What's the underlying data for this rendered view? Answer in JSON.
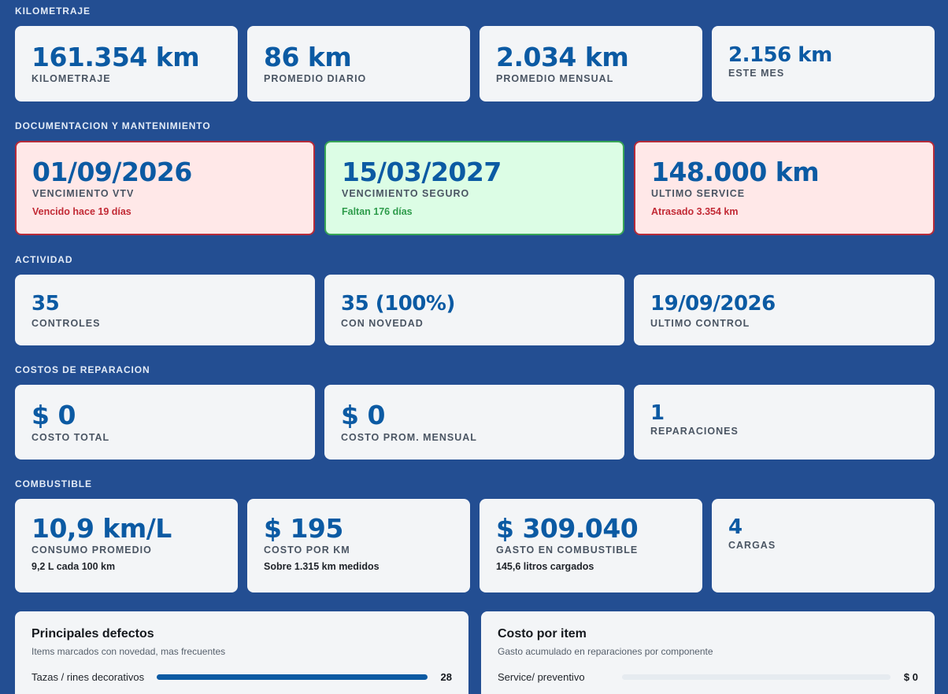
{
  "sections": {
    "kilometraje": "KILOMETRAJE",
    "documentacion": "DOCUMENTACION Y MANTENIMIENTO",
    "actividad": "ACTIVIDAD",
    "costos": "COSTOS DE REPARACION",
    "combustible": "COMBUSTIBLE"
  },
  "kilometraje": [
    {
      "value": "161.354 km",
      "label": "KILOMETRAJE"
    },
    {
      "value": "86 km",
      "label": "PROMEDIO DIARIO"
    },
    {
      "value": "2.034 km",
      "label": "PROMEDIO MENSUAL"
    },
    {
      "value": "2.156 km",
      "label": "ESTE MES"
    }
  ],
  "documentacion": [
    {
      "value": "01/09/2026",
      "label": "VENCIMIENTO VTV",
      "sub": "Vencido hace 19 días",
      "status": "danger"
    },
    {
      "value": "15/03/2027",
      "label": "VENCIMIENTO SEGURO",
      "sub": "Faltan 176 días",
      "status": "ok"
    },
    {
      "value": "148.000 km",
      "label": "ULTIMO SERVICE",
      "sub": "Atrasado 3.354 km",
      "status": "danger"
    }
  ],
  "actividad": [
    {
      "value": "35",
      "label": "CONTROLES"
    },
    {
      "value": "35 (100%)",
      "label": "CON NOVEDAD"
    },
    {
      "value": "19/09/2026",
      "label": "ULTIMO CONTROL"
    }
  ],
  "costos": [
    {
      "value": "$ 0",
      "label": "COSTO TOTAL"
    },
    {
      "value": "$ 0",
      "label": "COSTO PROM. MENSUAL"
    },
    {
      "value": "1",
      "label": "REPARACIONES"
    }
  ],
  "combustible": [
    {
      "value": "10,9 km/L",
      "label": "CONSUMO PROMEDIO",
      "sub": "9,2 L cada 100 km"
    },
    {
      "value": "$ 195",
      "label": "COSTO POR KM",
      "sub": "Sobre 1.315 km medidos"
    },
    {
      "value": "$ 309.040",
      "label": "GASTO EN COMBUSTIBLE",
      "sub": "145,6 litros cargados"
    },
    {
      "value": "4",
      "label": "CARGAS"
    }
  ],
  "defectos": {
    "title": "Principales defectos",
    "subtitle": "Items marcados con novedad, mas frecuentes",
    "items": [
      {
        "label": "Tazas / rines decorativos",
        "value": "28",
        "fraction": 1.0
      }
    ]
  },
  "costo_item": {
    "title": "Costo por item",
    "subtitle": "Gasto acumulado en reparaciones por componente",
    "items": [
      {
        "label": "Service/ preventivo",
        "value": "$ 0",
        "fraction": 0.0
      }
    ]
  },
  "colors": {
    "background": "#234e92",
    "card": "#f3f5f7",
    "value": "#0b5aa3",
    "danger_bg": "#ffe8e8",
    "danger_border": "#b52b3a",
    "ok_bg": "#dcfde5",
    "ok_border": "#38a556"
  }
}
